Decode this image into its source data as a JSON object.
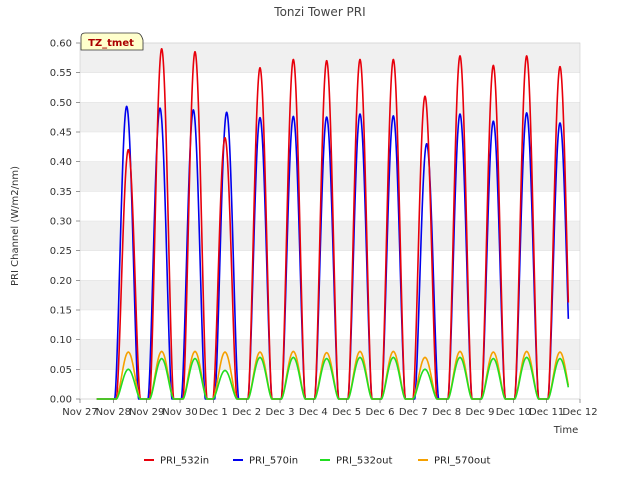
{
  "chart_data": {
    "type": "line",
    "title": "Tonzi Tower PRI",
    "xlabel": "Time",
    "ylabel": "PRI Channel (W/m2/nm)",
    "ylim": [
      0,
      0.6
    ],
    "xlim": [
      0,
      15
    ],
    "y_ticks": [
      0.0,
      0.05,
      0.1,
      0.15,
      0.2,
      0.25,
      0.3,
      0.35,
      0.4,
      0.45,
      0.5,
      0.55,
      0.6
    ],
    "y_tick_labels": [
      "0.00",
      "0.05",
      "0.10",
      "0.15",
      "0.20",
      "0.25",
      "0.30",
      "0.35",
      "0.40",
      "0.45",
      "0.50",
      "0.55",
      "0.60"
    ],
    "x_ticks": [
      0,
      1,
      2,
      3,
      4,
      5,
      6,
      7,
      8,
      9,
      10,
      11,
      12,
      13,
      14,
      15
    ],
    "x_tick_labels": [
      "Nov 27",
      "Nov 28",
      "Nov 29",
      "Nov 30",
      "Dec 1",
      "Dec 2",
      "Dec 3",
      "Dec 4",
      "Dec 5",
      "Dec 6",
      "Dec 7",
      "Dec 8",
      "Dec 9",
      "Dec 10",
      "Dec 11",
      "Dec 12"
    ],
    "annotation": "TZ_tmet",
    "grid": "horizontal bands",
    "legend_position": "bottom",
    "series": [
      {
        "name": "PRI_532in",
        "color": "#e8000b",
        "peak_centers": [
          1.45,
          2.45,
          3.45,
          4.35,
          5.4,
          6.4,
          7.4,
          8.4,
          9.4,
          10.35,
          11.4,
          12.4,
          13.4,
          14.4
        ],
        "peaks": [
          0.42,
          0.59,
          0.585,
          0.44,
          0.558,
          0.572,
          0.57,
          0.572,
          0.572,
          0.51,
          0.578,
          0.562,
          0.578,
          0.56
        ]
      },
      {
        "name": "PRI_570in",
        "color": "#0000ee",
        "peak_centers": [
          1.4,
          2.4,
          3.4,
          4.4,
          5.4,
          6.4,
          7.4,
          8.4,
          9.4,
          10.4,
          11.4,
          12.4,
          13.4,
          14.4
        ],
        "peaks": [
          0.493,
          0.49,
          0.487,
          0.483,
          0.474,
          0.476,
          0.475,
          0.48,
          0.477,
          0.43,
          0.48,
          0.468,
          0.482,
          0.465
        ]
      },
      {
        "name": "PRI_532out",
        "color": "#22dd22",
        "peak_centers": [
          1.45,
          2.45,
          3.45,
          4.35,
          5.4,
          6.4,
          7.4,
          8.4,
          9.4,
          10.35,
          11.4,
          12.4,
          13.4,
          14.4
        ],
        "peaks": [
          0.05,
          0.068,
          0.068,
          0.048,
          0.07,
          0.07,
          0.068,
          0.07,
          0.07,
          0.05,
          0.07,
          0.068,
          0.07,
          0.068
        ]
      },
      {
        "name": "PRI_570out",
        "color": "#f5a000",
        "peak_centers": [
          1.45,
          2.45,
          3.45,
          4.35,
          5.4,
          6.4,
          7.4,
          8.4,
          9.4,
          10.35,
          11.4,
          12.4,
          13.4,
          14.4
        ],
        "peaks": [
          0.079,
          0.08,
          0.08,
          0.079,
          0.079,
          0.08,
          0.078,
          0.08,
          0.08,
          0.07,
          0.08,
          0.079,
          0.08,
          0.079
        ]
      }
    ]
  }
}
